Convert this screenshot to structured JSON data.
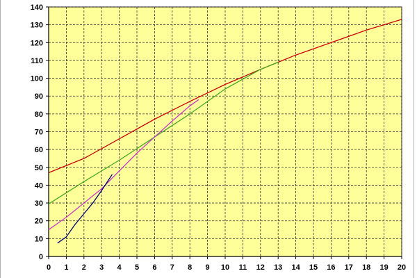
{
  "chart_data": {
    "type": "line",
    "title": "",
    "xlabel": "",
    "ylabel": "",
    "xlim": [
      0,
      20
    ],
    "ylim": [
      0,
      140
    ],
    "x_ticks": [
      0,
      1,
      2,
      3,
      4,
      5,
      6,
      7,
      8,
      9,
      10,
      11,
      12,
      13,
      14,
      15,
      16,
      17,
      18,
      19,
      20
    ],
    "y_ticks": [
      0,
      10,
      20,
      30,
      40,
      50,
      60,
      70,
      80,
      90,
      100,
      110,
      120,
      130,
      140
    ],
    "grid": true,
    "legend": "none",
    "background_color": "#ffff99",
    "series": [
      {
        "color": "#cc0000",
        "points": [
          [
            0,
            47
          ],
          [
            2,
            55
          ],
          [
            4,
            66
          ],
          [
            6,
            77
          ],
          [
            8,
            87
          ],
          [
            10,
            96.5
          ],
          [
            12,
            105
          ],
          [
            13,
            109
          ],
          [
            14,
            113
          ],
          [
            16,
            120
          ],
          [
            18,
            127
          ],
          [
            20,
            133
          ]
        ]
      },
      {
        "color": "#44aa22",
        "points": [
          [
            0,
            29.5
          ],
          [
            2,
            42
          ],
          [
            4,
            54
          ],
          [
            6,
            67
          ],
          [
            8,
            80
          ],
          [
            10,
            94
          ],
          [
            12,
            105
          ],
          [
            13,
            109
          ]
        ]
      },
      {
        "color": "#cc33cc",
        "points": [
          [
            0,
            15
          ],
          [
            1,
            22
          ],
          [
            2,
            30
          ],
          [
            3,
            38
          ],
          [
            4,
            48
          ],
          [
            5,
            58
          ],
          [
            6,
            67
          ],
          [
            7,
            76
          ],
          [
            8,
            84.5
          ],
          [
            8.5,
            88
          ]
        ]
      },
      {
        "color": "#000080",
        "points": [
          [
            0.5,
            7.5
          ],
          [
            1,
            11
          ],
          [
            1.5,
            18
          ],
          [
            2,
            24
          ],
          [
            2.5,
            30
          ],
          [
            3,
            37
          ],
          [
            3.6,
            46
          ]
        ]
      }
    ]
  }
}
